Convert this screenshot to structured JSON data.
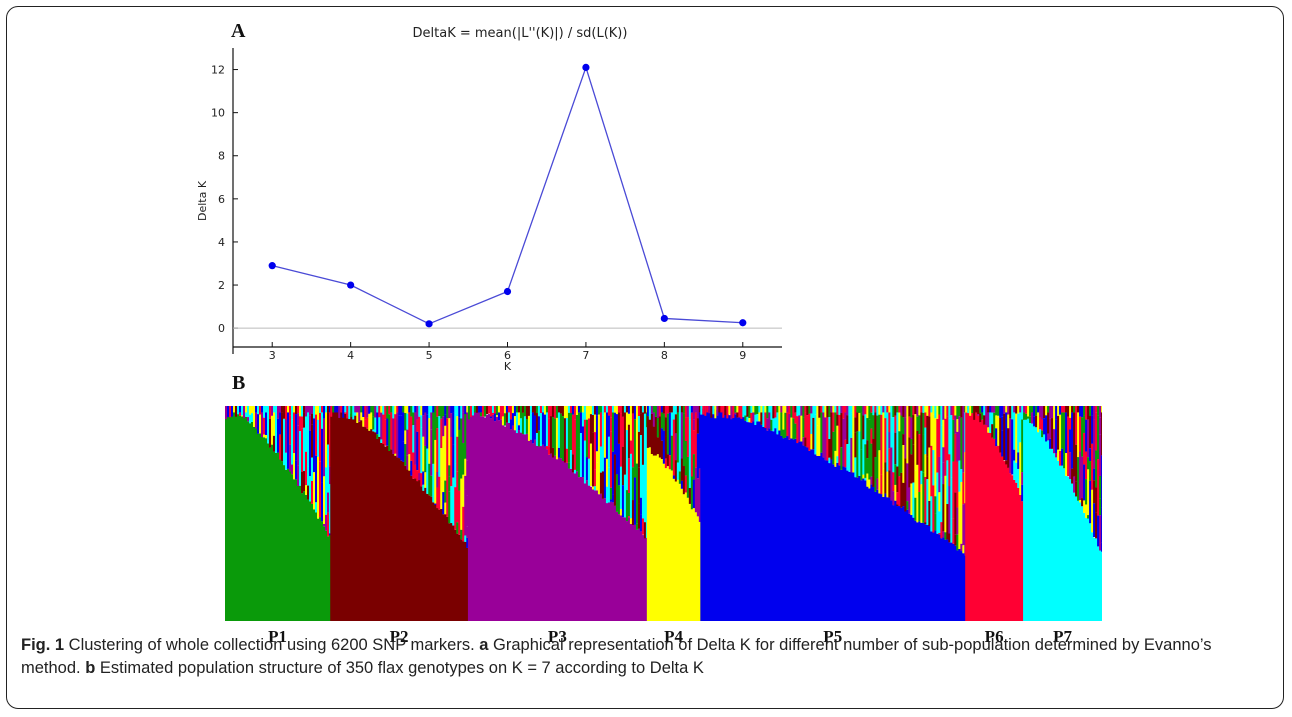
{
  "chart_data": [
    {
      "type": "line",
      "panel": "A",
      "title": "DeltaK = mean(|L''(K)|) / sd(L(K))",
      "xlabel": "K",
      "ylabel": "Delta K",
      "x": [
        3,
        4,
        5,
        6,
        7,
        8,
        9
      ],
      "y": [
        2.9,
        2.0,
        0.2,
        1.7,
        12.1,
        0.45,
        0.25
      ],
      "xlim": [
        2.5,
        9.5
      ],
      "ylim": [
        -1.2,
        13
      ],
      "yticks": [
        0,
        2,
        4,
        6,
        8,
        10,
        12
      ],
      "xticks": [
        3,
        4,
        5,
        6,
        7,
        8,
        9
      ],
      "line_color": "#4a4ad6",
      "marker_color": "#0000ee",
      "zero_line": true
    },
    {
      "type": "stacked-bar",
      "panel": "B",
      "title": "",
      "groups": [
        {
          "label": "P1",
          "color": "#0a9a0a",
          "start": 0.0,
          "end": 0.12,
          "floor_start": 0.0,
          "floor_end": 0.62
        },
        {
          "label": "P2",
          "color": "#7a0000",
          "start": 0.12,
          "end": 0.277,
          "floor_start": 0.0,
          "floor_end": 0.67
        },
        {
          "label": "P3",
          "color": "#990099",
          "start": 0.277,
          "end": 0.481,
          "floor_start": 0.02,
          "floor_end": 0.62
        },
        {
          "label": "P4",
          "color": "#ffff00",
          "start": 0.481,
          "end": 0.542,
          "floor_start": 0.2,
          "floor_end": 0.55
        },
        {
          "label": "P5",
          "color": "#0000ee",
          "start": 0.542,
          "end": 0.844,
          "floor_start": 0.0,
          "floor_end": 0.7
        },
        {
          "label": "P6",
          "color": "#ff0033",
          "start": 0.844,
          "end": 0.91,
          "floor_start": 0.0,
          "floor_end": 0.45
        },
        {
          "label": "P7",
          "color": "#00ffff",
          "start": 0.91,
          "end": 1.0,
          "floor_start": 0.05,
          "floor_end": 0.7
        }
      ]
    }
  ],
  "labels": {
    "panel_a": "A",
    "panel_b": "B"
  },
  "caption": {
    "fig": "Fig. 1",
    "text1": " Clustering of whole collection using 6200 SNP markers. ",
    "a": "a",
    "text2": " Graphical representation of Delta K for different number of sub-population determined by Evanno’s method. ",
    "b": "b",
    "text3": " Estimated population structure of 350 flax genotypes on K = 7 according to Delta K"
  }
}
